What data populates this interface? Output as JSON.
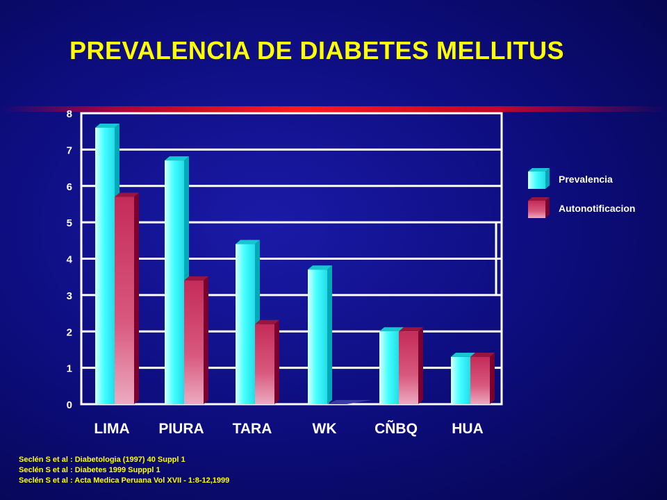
{
  "title": "PREVALENCIA DE DIABETES MELLITUS",
  "references": [
    "Seclén S et al : Diabetologia (1997) 40 Suppl 1",
    "Seclén S et al : Diabetes 1999 Supppl 1",
    "Seclén S et al : Acta Medica Peruana Vol XVII - 1:8-12,1999"
  ],
  "colors": {
    "background": "#0c0c7a",
    "title": "#ffff00",
    "prevalencia_front": "#33ffff",
    "prevalencia_side": "#00a8b8",
    "autonotificacion_front": "#c0305a",
    "autonotificacion_side": "#7a0030",
    "grid": "#ffffff"
  },
  "chart_data": {
    "type": "bar",
    "title": "PREVALENCIA DE DIABETES MELLITUS",
    "xlabel": "",
    "ylabel": "",
    "categories": [
      "LIMA",
      "PIURA",
      "TARA",
      "WK",
      "CÑBQ",
      "HUA"
    ],
    "ylim": [
      0,
      8
    ],
    "yticks": [
      "0",
      "1",
      "2",
      "3",
      "4",
      "5",
      "6",
      "7",
      "8"
    ],
    "grid": true,
    "legend_position": "right",
    "series": [
      {
        "name": "Prevalencia",
        "values": [
          7.6,
          6.7,
          4.4,
          3.7,
          2.0,
          1.3
        ]
      },
      {
        "name": "Autonotificacion",
        "values": [
          5.7,
          3.4,
          2.2,
          0.0,
          2.0,
          1.3
        ]
      }
    ]
  }
}
